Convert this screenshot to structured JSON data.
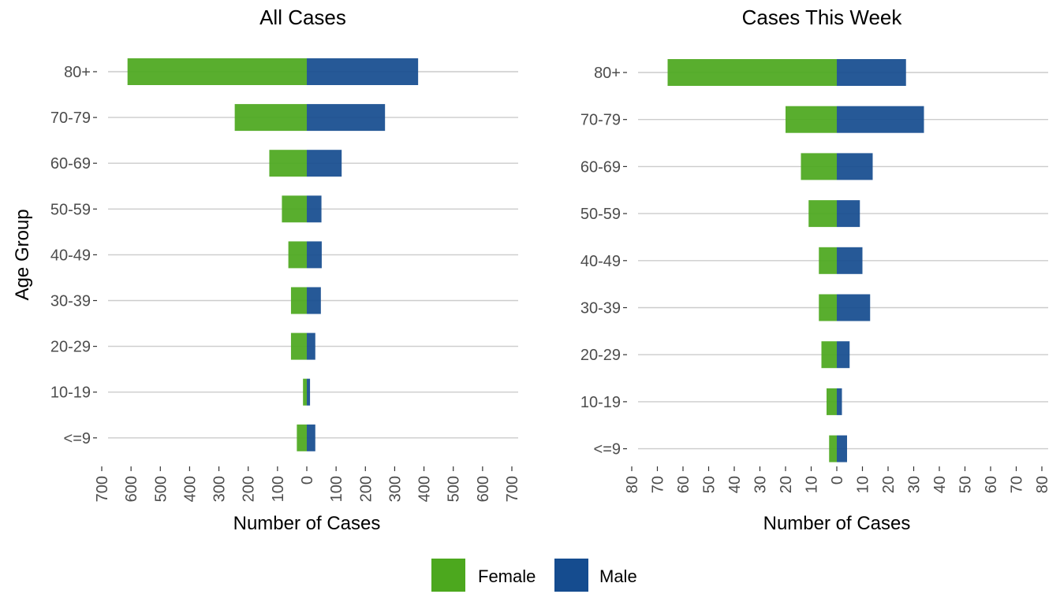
{
  "colors": {
    "female": "#4ca81e",
    "male": "#154c8f",
    "grid": "#cccccc",
    "tick_text": "#4d4d4d"
  },
  "legend": {
    "placement": "bottom",
    "items": [
      {
        "key": "female",
        "label": "Female"
      },
      {
        "key": "male",
        "label": "Male"
      }
    ]
  },
  "chart_data": [
    {
      "type": "bar",
      "orientation": "horizontal",
      "layout": "population-pyramid",
      "title": "All Cases",
      "xlabel": "Number of Cases",
      "ylabel": "Age Group",
      "categories": [
        "80+",
        "70-79",
        "60-69",
        "50-59",
        "40-49",
        "30-39",
        "20-29",
        "10-19",
        "<=9"
      ],
      "xlim": [
        -700,
        700
      ],
      "xticks": [
        -700,
        -600,
        -500,
        -400,
        -300,
        -200,
        -100,
        0,
        100,
        200,
        300,
        400,
        500,
        600,
        700
      ],
      "xtick_labels": [
        "700",
        "600",
        "500",
        "400",
        "300",
        "200",
        "100",
        "0",
        "100",
        "200",
        "300",
        "400",
        "500",
        "600",
        "700"
      ],
      "grid": "horizontal",
      "series": [
        {
          "name": "Female",
          "color_key": "female",
          "values": [
            612,
            246,
            128,
            85,
            63,
            54,
            54,
            13,
            34
          ]
        },
        {
          "name": "Male",
          "color_key": "male",
          "values": [
            380,
            267,
            119,
            50,
            51,
            48,
            29,
            11,
            29
          ]
        }
      ]
    },
    {
      "type": "bar",
      "orientation": "horizontal",
      "layout": "population-pyramid",
      "title": "Cases This Week",
      "xlabel": "Number of Cases",
      "ylabel": "",
      "categories": [
        "80+",
        "70-79",
        "60-69",
        "50-59",
        "40-49",
        "30-39",
        "20-29",
        "10-19",
        "<=9"
      ],
      "xlim": [
        -80,
        80
      ],
      "xticks": [
        -80,
        -70,
        -60,
        -50,
        -40,
        -30,
        -20,
        -10,
        0,
        10,
        20,
        30,
        40,
        50,
        60,
        70,
        80
      ],
      "xtick_labels": [
        "80",
        "70",
        "60",
        "50",
        "40",
        "30",
        "20",
        "10",
        "0",
        "10",
        "20",
        "30",
        "40",
        "50",
        "60",
        "70",
        "80"
      ],
      "grid": "horizontal",
      "series": [
        {
          "name": "Female",
          "color_key": "female",
          "values": [
            66,
            20,
            14,
            11,
            7,
            7,
            6,
            4,
            3
          ]
        },
        {
          "name": "Male",
          "color_key": "male",
          "values": [
            27,
            34,
            14,
            9,
            10,
            13,
            5,
            2,
            4
          ]
        }
      ]
    }
  ]
}
